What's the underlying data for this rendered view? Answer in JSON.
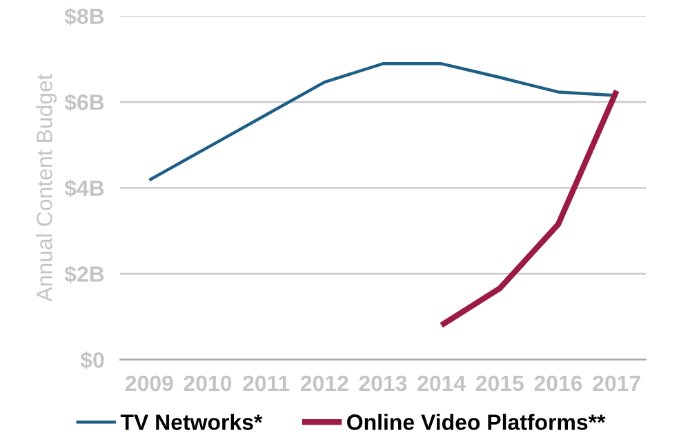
{
  "chart_data": {
    "type": "line",
    "ylabel": "Annual Content Budget",
    "categories": [
      "2009",
      "2010",
      "2011",
      "2012",
      "2013",
      "2014",
      "2015",
      "2016",
      "2017"
    ],
    "series": [
      {
        "name": "TV Networks*",
        "color": "#1f5f86",
        "values": [
          4.18,
          4.94,
          5.7,
          6.46,
          6.89,
          6.89,
          6.57,
          6.23,
          6.15
        ]
      },
      {
        "name": "Online Video Platforms**",
        "color": "#9b1b45",
        "values": [
          null,
          null,
          null,
          null,
          null,
          0.8,
          1.66,
          3.15,
          6.26
        ]
      }
    ],
    "ylim": [
      0,
      8
    ],
    "yticks": [
      {
        "value": 0,
        "label": "$0"
      },
      {
        "value": 2,
        "label": "$2B"
      },
      {
        "value": 4,
        "label": "$4B"
      },
      {
        "value": 6,
        "label": "$6B"
      },
      {
        "value": 8,
        "label": "$8B"
      }
    ],
    "grid": "y",
    "legend": "bottom",
    "marker": "none",
    "line_style": "solid"
  }
}
